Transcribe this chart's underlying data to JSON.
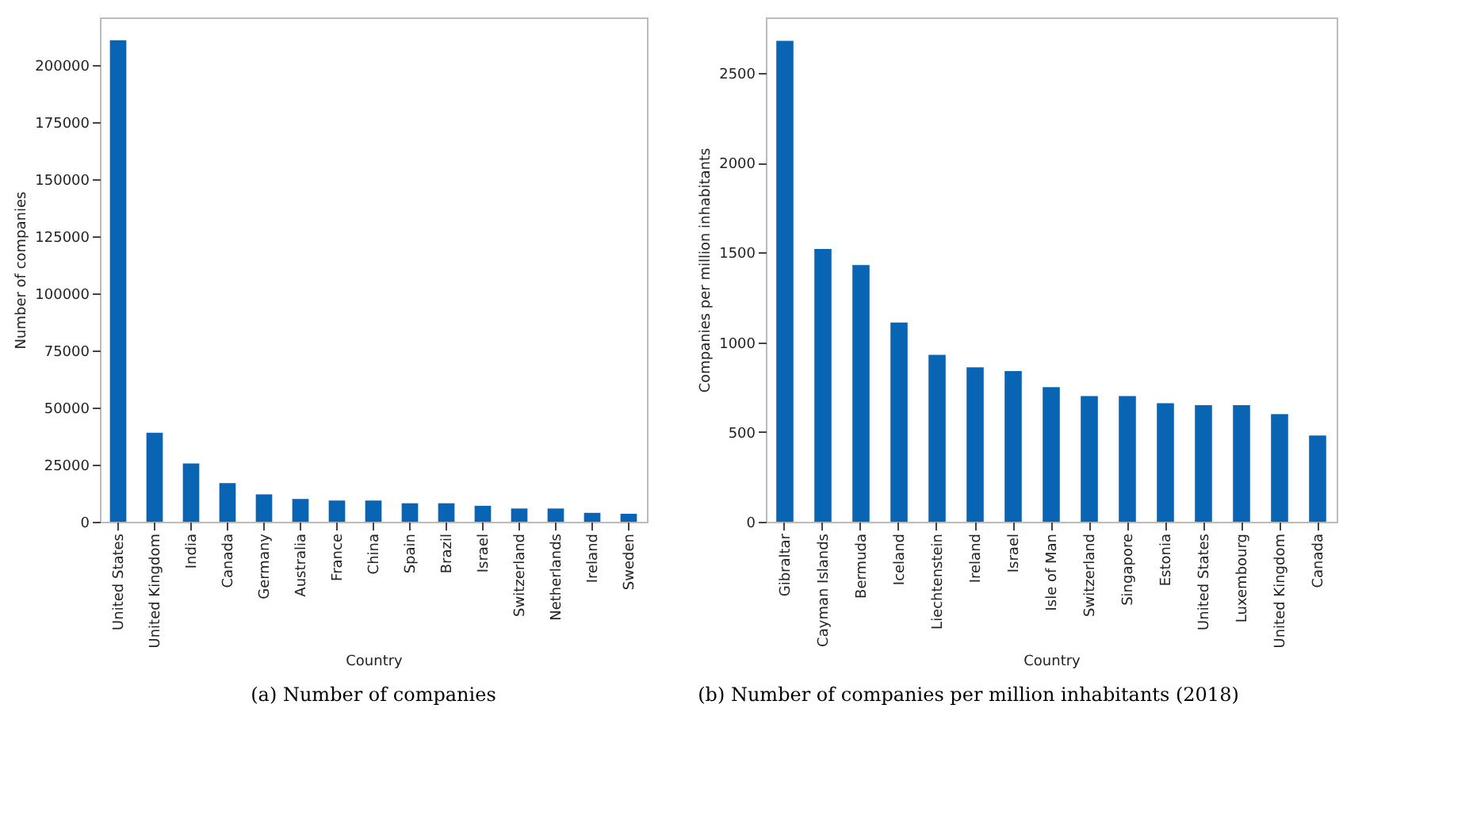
{
  "chart_data": [
    {
      "type": "bar",
      "title": "(a) Number of companies",
      "xlabel": "Country",
      "ylabel": "Number of companies",
      "color": "#0a64b4",
      "grid": false,
      "categories": [
        "United States",
        "United Kingdom",
        "India",
        "Canada",
        "Germany",
        "Australia",
        "France",
        "China",
        "Spain",
        "Brazil",
        "Israel",
        "Switzerland",
        "Netherlands",
        "Ireland",
        "Sweden"
      ],
      "values": [
        211000,
        39000,
        25500,
        16900,
        12000,
        10000,
        9300,
        9300,
        8100,
        8100,
        7000,
        5800,
        5800,
        3900,
        3500
      ],
      "ylim": [
        0,
        221000
      ],
      "yticks": [
        0,
        25000,
        50000,
        75000,
        100000,
        125000,
        150000,
        175000,
        200000
      ]
    },
    {
      "type": "bar",
      "title": "(b) Number of companies per million inhabitants (2018)",
      "xlabel": "Country",
      "ylabel": "Companies per million inhabitants",
      "color": "#0a64b4",
      "grid": false,
      "categories": [
        "Gibraltar",
        "Cayman Islands",
        "Bermuda",
        "Iceland",
        "Liechtenstein",
        "Ireland",
        "Israel",
        "Isle of Man",
        "Switzerland",
        "Singapore",
        "Estonia",
        "United States",
        "Luxembourg",
        "United Kingdom",
        "Canada"
      ],
      "values": [
        2680,
        1520,
        1430,
        1110,
        930,
        860,
        840,
        750,
        700,
        700,
        660,
        650,
        650,
        600,
        480
      ],
      "ylim": [
        0,
        2810
      ],
      "yticks": [
        0,
        500,
        1000,
        1500,
        2000,
        2500
      ]
    }
  ]
}
